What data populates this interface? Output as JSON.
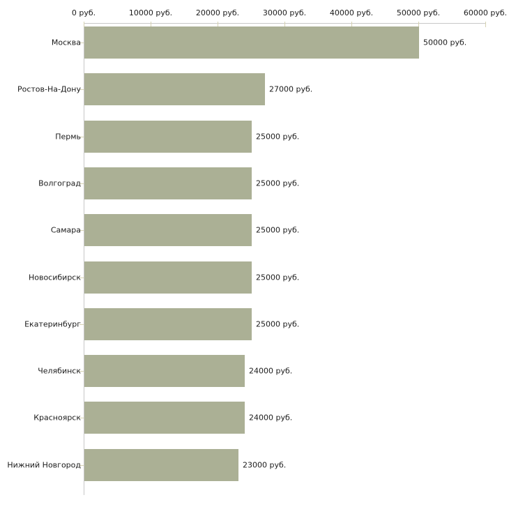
{
  "chart_data": {
    "type": "bar",
    "orientation": "horizontal",
    "title": "",
    "xlabel": "",
    "ylabel": "",
    "xlim": [
      0,
      60000
    ],
    "grid": false,
    "legend": false,
    "x_tick_values": [
      0,
      10000,
      20000,
      30000,
      40000,
      50000,
      60000
    ],
    "x_tick_labels": [
      "0 руб.",
      "10000 руб.",
      "20000 руб.",
      "30000 руб.",
      "40000 руб.",
      "50000 руб.",
      "60000 руб."
    ],
    "categories": [
      "Москва",
      "Ростов-На-Дону",
      "Пермь",
      "Волгоград",
      "Самара",
      "Новосибирск",
      "Екатеринбург",
      "Челябинск",
      "Красноярск",
      "Нижний Новгород"
    ],
    "values": [
      50000,
      27000,
      25000,
      25000,
      25000,
      25000,
      25000,
      24000,
      24000,
      23000
    ],
    "value_labels": [
      "50000 руб.",
      "27000 руб.",
      "25000 руб.",
      "25000 руб.",
      "25000 руб.",
      "25000 руб.",
      "25000 руб.",
      "24000 руб.",
      "24000 руб.",
      "23000 руб."
    ],
    "colors": {
      "bar": "#abb095",
      "axis_line": "#c8c8c8",
      "tick_mark": "#d6d2b2",
      "text": "#1b1b1b",
      "background": "#ffffff"
    }
  }
}
